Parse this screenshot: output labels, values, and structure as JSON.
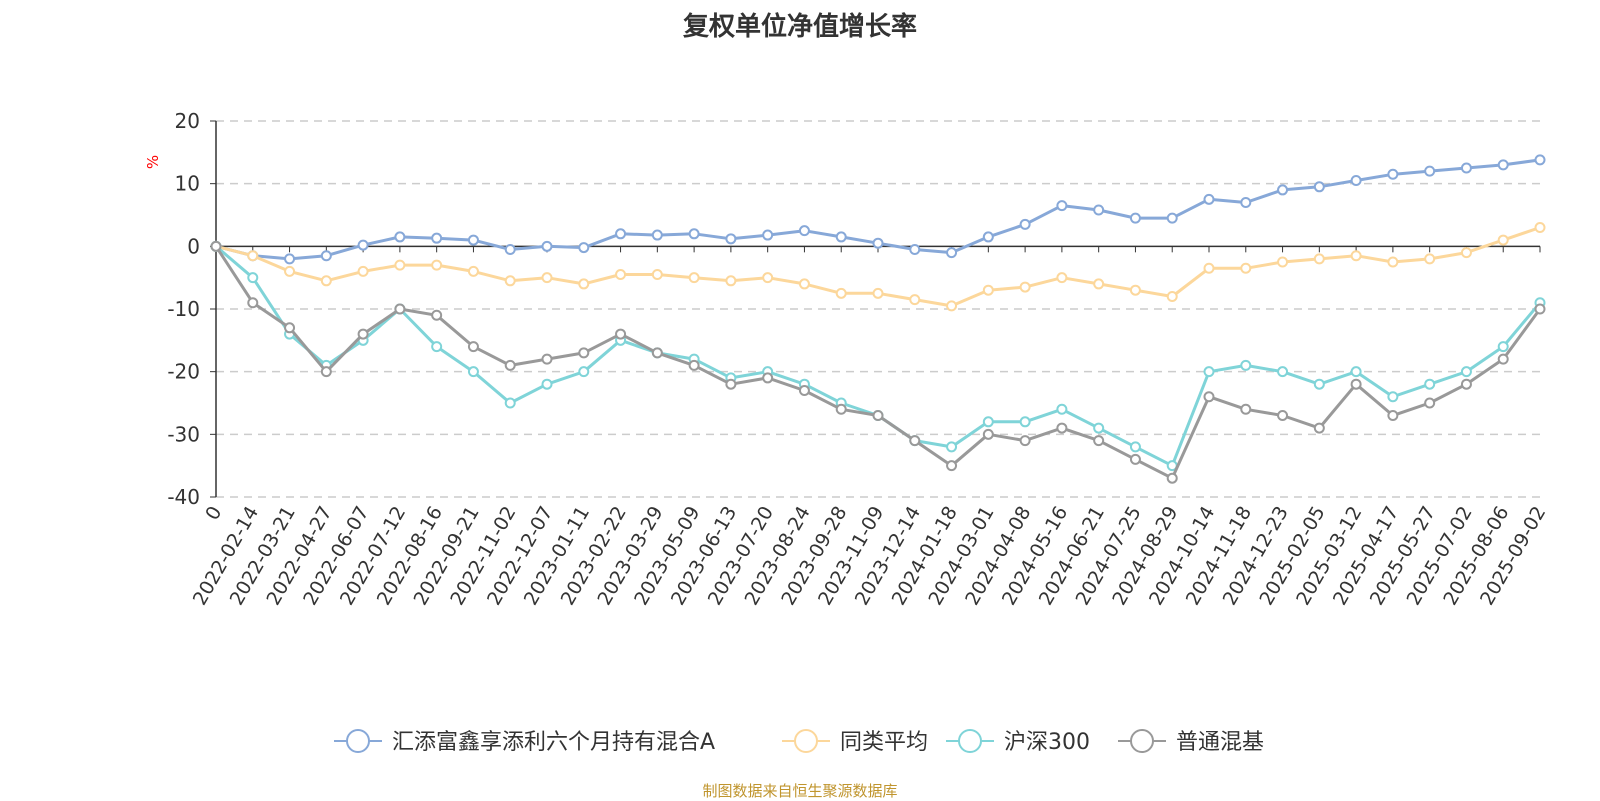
{
  "chart_data": {
    "type": "line",
    "title": "复权单位净值增长率",
    "ylabel": "%",
    "ylim": [
      -40,
      20
    ],
    "yticks": [
      20,
      10,
      0,
      -10,
      -20,
      -30,
      -40
    ],
    "grid": true,
    "legend_position": "bottom",
    "source": "制图数据来自恒生聚源数据库",
    "x_labels": [
      "0",
      "2022-02-14",
      "2022-03-21",
      "2022-04-27",
      "2022-06-07",
      "2022-07-12",
      "2022-08-16",
      "2022-09-21",
      "2022-11-02",
      "2022-12-07",
      "2023-01-11",
      "2023-02-22",
      "2023-03-29",
      "2023-05-09",
      "2023-06-13",
      "2023-07-20",
      "2023-08-24",
      "2023-09-28",
      "2023-11-09",
      "2023-12-14",
      "2024-01-18",
      "2024-03-01",
      "2024-04-08",
      "2024-05-16",
      "2024-06-21",
      "2024-07-25",
      "2024-08-29",
      "2024-10-14",
      "2024-11-18",
      "2024-12-23",
      "2025-02-05",
      "2025-03-12",
      "2025-04-17",
      "2025-05-27",
      "2025-07-02",
      "2025-08-06",
      "2025-09-02"
    ],
    "series": [
      {
        "name": "汇添富鑫享添利六个月持有混合A",
        "color": "#87a8d8",
        "values": [
          0,
          -1.5,
          -2.0,
          -1.5,
          0.2,
          1.5,
          1.3,
          1.0,
          -0.5,
          0,
          -0.2,
          2.0,
          1.8,
          2.0,
          1.2,
          1.8,
          2.5,
          1.5,
          0.5,
          -0.5,
          -1.0,
          1.5,
          3.5,
          6.5,
          5.8,
          4.5,
          4.5,
          7.5,
          7.0,
          9.0,
          9.5,
          10.5,
          11.5,
          12.0,
          12.5,
          13.0,
          13.8
        ]
      },
      {
        "name": "同类平均",
        "color": "#fcd79b",
        "values": [
          0,
          -1.5,
          -4.0,
          -5.5,
          -4.0,
          -3.0,
          -3.0,
          -4.0,
          -5.5,
          -5.0,
          -6.0,
          -4.5,
          -4.5,
          -5.0,
          -5.5,
          -5.0,
          -6.0,
          -7.5,
          -7.5,
          -8.5,
          -9.5,
          -7.0,
          -6.5,
          -5.0,
          -6.0,
          -7.0,
          -8.0,
          -3.5,
          -3.5,
          -2.5,
          -2.0,
          -1.5,
          -2.5,
          -2.0,
          -1.0,
          1.0,
          3.0
        ]
      },
      {
        "name": "沪深300",
        "color": "#7fd4d8",
        "values": [
          0,
          -5,
          -14,
          -19,
          -15,
          -10,
          -16,
          -20,
          -25,
          -22,
          -20,
          -15,
          -17,
          -18,
          -21,
          -20,
          -22,
          -25,
          -27,
          -31,
          -32,
          -28,
          -28,
          -26,
          -29,
          -32,
          -35,
          -20,
          -19,
          -20,
          -22,
          -20,
          -24,
          -22,
          -20,
          -16,
          -9
        ]
      },
      {
        "name": "普通混基",
        "color": "#999999",
        "values": [
          0,
          -9,
          -13,
          -20,
          -14,
          -10,
          -11,
          -16,
          -19,
          -18,
          -17,
          -14,
          -17,
          -19,
          -22,
          -21,
          -23,
          -26,
          -27,
          -31,
          -35,
          -30,
          -31,
          -29,
          -31,
          -34,
          -37,
          -24,
          -26,
          -27,
          -29,
          -22,
          -27,
          -25,
          -22,
          -18,
          -10
        ]
      }
    ]
  }
}
